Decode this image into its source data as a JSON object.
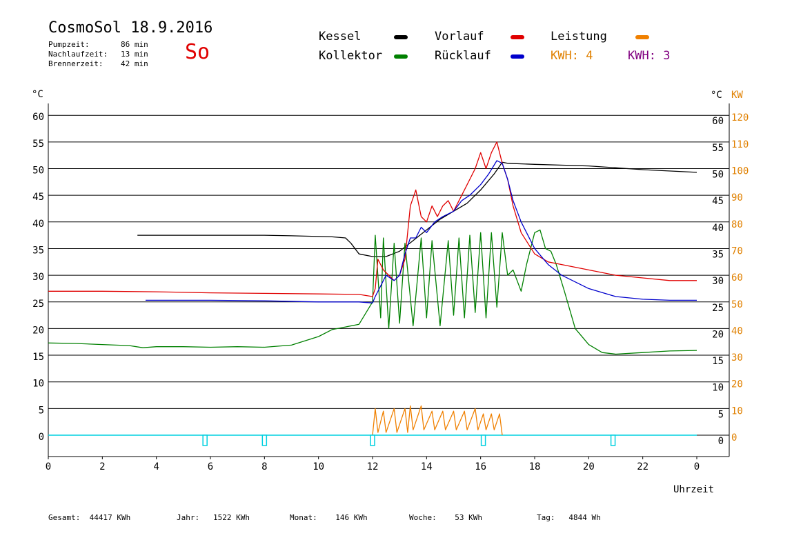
{
  "header": {
    "title": "CosmoSol 18.9.2016",
    "day_label": "So",
    "stats": [
      {
        "label": "Pumpzeit:",
        "value": "86 min"
      },
      {
        "label": "Nachlaufzeit:",
        "value": "13 min"
      },
      {
        "label": "Brennerzeit:",
        "value": "42 min"
      }
    ]
  },
  "legend": {
    "kessel": {
      "label": "Kessel",
      "color": "#000000"
    },
    "kollektor": {
      "label": "Kollektor",
      "color": "#008000"
    },
    "vorlauf": {
      "label": "Vorlauf",
      "color": "#e00000"
    },
    "ruecklauf": {
      "label": "Rücklauf",
      "color": "#0000cc"
    },
    "leistung": {
      "label": "Leistung",
      "color": "#f08000"
    },
    "kwh_a": {
      "label": "KWH:",
      "value": "4",
      "color": "#e08000"
    },
    "kwh_b": {
      "label": "KWH:",
      "value": "3",
      "color": "#800080"
    }
  },
  "footer": {
    "gesamt": {
      "label": "Gesamt:",
      "value": "44417 KWh"
    },
    "jahr": {
      "label": "Jahr:",
      "value": "1522 KWh"
    },
    "monat": {
      "label": "Monat:",
      "value": "146 KWh"
    },
    "woche": {
      "label": "Woche:",
      "value": "53 KWh"
    },
    "tag": {
      "label": "Tag:",
      "value": "4844 Wh"
    }
  },
  "chart_data": {
    "type": "line",
    "xlabel": "Uhrzeit",
    "x_ticks": [
      "0",
      "2",
      "4",
      "6",
      "8",
      "10",
      "12",
      "14",
      "16",
      "18",
      "20",
      "22",
      "0"
    ],
    "xlim": [
      0,
      24
    ],
    "ylabel_left": "°C",
    "ylabel_right": "°C",
    "ylabel_right2": "KW",
    "ylim": [
      -4,
      64
    ],
    "y_ticks": [
      0,
      5,
      10,
      15,
      20,
      25,
      30,
      35,
      40,
      45,
      50,
      55,
      60
    ],
    "y2_ticks": [
      0,
      10,
      20,
      30,
      40,
      50,
      60,
      70,
      80,
      90,
      100,
      110,
      120
    ],
    "grid": true,
    "colors": {
      "kessel": "#000000",
      "kollektor": "#008000",
      "vorlauf": "#e00000",
      "ruecklauf": "#0000cc",
      "leistung": "#f08000",
      "pump": "#00d0e0"
    },
    "series": [
      {
        "name": "Kessel",
        "points": [
          [
            3.3,
            37.5
          ],
          [
            6,
            37.5
          ],
          [
            8,
            37.5
          ],
          [
            9,
            37.4
          ],
          [
            10.5,
            37.2
          ],
          [
            11,
            37
          ],
          [
            11.2,
            36
          ],
          [
            11.5,
            34
          ],
          [
            12,
            33.5
          ],
          [
            12.5,
            33.5
          ],
          [
            13,
            34.5
          ],
          [
            13.5,
            36.5
          ],
          [
            14,
            38.5
          ],
          [
            14.5,
            40.5
          ],
          [
            15,
            42
          ],
          [
            15.5,
            43.5
          ],
          [
            16,
            46
          ],
          [
            16.5,
            49
          ],
          [
            16.8,
            51.2
          ],
          [
            17,
            51
          ],
          [
            18,
            50.8
          ],
          [
            20,
            50.5
          ],
          [
            22,
            49.8
          ],
          [
            24,
            49.3
          ]
        ]
      },
      {
        "name": "Kollektor",
        "points": [
          [
            0,
            17.3
          ],
          [
            1,
            17.2
          ],
          [
            2,
            17
          ],
          [
            3,
            16.8
          ],
          [
            3.5,
            16.4
          ],
          [
            4,
            16.6
          ],
          [
            5,
            16.6
          ],
          [
            6,
            16.5
          ],
          [
            7,
            16.6
          ],
          [
            8,
            16.5
          ],
          [
            9,
            16.9
          ],
          [
            10,
            18.5
          ],
          [
            10.5,
            19.8
          ],
          [
            11,
            20.3
          ],
          [
            11.5,
            20.8
          ],
          [
            12,
            25
          ],
          [
            12.1,
            37.5
          ],
          [
            12.3,
            22
          ],
          [
            12.4,
            37
          ],
          [
            12.6,
            20
          ],
          [
            12.8,
            36
          ],
          [
            13,
            21
          ],
          [
            13.2,
            36
          ],
          [
            13.5,
            20.5
          ],
          [
            13.8,
            37
          ],
          [
            14,
            22
          ],
          [
            14.2,
            36.5
          ],
          [
            14.5,
            20.5
          ],
          [
            14.8,
            36.5
          ],
          [
            15,
            22.5
          ],
          [
            15.2,
            37
          ],
          [
            15.4,
            22
          ],
          [
            15.6,
            37.5
          ],
          [
            15.8,
            23
          ],
          [
            16,
            38
          ],
          [
            16.2,
            22
          ],
          [
            16.4,
            38
          ],
          [
            16.6,
            24
          ],
          [
            16.8,
            38
          ],
          [
            17,
            30
          ],
          [
            17.2,
            31
          ],
          [
            17.5,
            27
          ],
          [
            17.7,
            32
          ],
          [
            18,
            38
          ],
          [
            18.2,
            38.5
          ],
          [
            18.4,
            35
          ],
          [
            18.6,
            34.5
          ],
          [
            18.8,
            32
          ],
          [
            19.1,
            27
          ],
          [
            19.5,
            20
          ],
          [
            20,
            17
          ],
          [
            20.5,
            15.5
          ],
          [
            21,
            15.2
          ],
          [
            22,
            15.5
          ],
          [
            23,
            15.8
          ],
          [
            24,
            15.9
          ]
        ]
      },
      {
        "name": "Vorlauf",
        "points": [
          [
            0,
            27
          ],
          [
            2,
            27
          ],
          [
            4,
            26.9
          ],
          [
            6,
            26.7
          ],
          [
            8,
            26.6
          ],
          [
            10,
            26.5
          ],
          [
            11.5,
            26.4
          ],
          [
            12,
            26
          ],
          [
            12.1,
            27.5
          ],
          [
            12.2,
            33
          ],
          [
            12.4,
            31
          ],
          [
            12.6,
            30
          ],
          [
            12.8,
            29
          ],
          [
            13,
            30
          ],
          [
            13.2,
            33
          ],
          [
            13.4,
            43
          ],
          [
            13.6,
            46
          ],
          [
            13.8,
            41
          ],
          [
            14,
            40
          ],
          [
            14.2,
            43
          ],
          [
            14.4,
            41
          ],
          [
            14.6,
            43
          ],
          [
            14.8,
            44
          ],
          [
            15,
            42
          ],
          [
            15.2,
            44
          ],
          [
            15.4,
            46
          ],
          [
            15.6,
            48
          ],
          [
            15.8,
            50
          ],
          [
            16,
            53
          ],
          [
            16.2,
            50
          ],
          [
            16.4,
            53
          ],
          [
            16.6,
            55
          ],
          [
            16.8,
            51
          ],
          [
            17,
            48
          ],
          [
            17.2,
            43
          ],
          [
            17.5,
            38
          ],
          [
            18,
            34
          ],
          [
            18.5,
            32.5
          ],
          [
            19,
            32
          ],
          [
            20,
            31
          ],
          [
            21,
            30
          ],
          [
            22,
            29.5
          ],
          [
            23,
            29
          ],
          [
            24,
            29
          ]
        ]
      },
      {
        "name": "Rücklauf",
        "points": [
          [
            3.6,
            25.3
          ],
          [
            6,
            25.3
          ],
          [
            8,
            25.2
          ],
          [
            10,
            25
          ],
          [
            11.5,
            25
          ],
          [
            12,
            24.8
          ],
          [
            12.1,
            26
          ],
          [
            12.3,
            28
          ],
          [
            12.5,
            30
          ],
          [
            12.8,
            29
          ],
          [
            13,
            30
          ],
          [
            13.2,
            34
          ],
          [
            13.4,
            37
          ],
          [
            13.6,
            37
          ],
          [
            13.8,
            39
          ],
          [
            14,
            38
          ],
          [
            14.3,
            40
          ],
          [
            14.6,
            41
          ],
          [
            15,
            42
          ],
          [
            15.3,
            44
          ],
          [
            15.6,
            45
          ],
          [
            16,
            47
          ],
          [
            16.3,
            49
          ],
          [
            16.6,
            51.5
          ],
          [
            16.8,
            51
          ],
          [
            17,
            48
          ],
          [
            17.2,
            44
          ],
          [
            17.5,
            40
          ],
          [
            18,
            35
          ],
          [
            18.5,
            32
          ],
          [
            19,
            30
          ],
          [
            20,
            27.5
          ],
          [
            21,
            26
          ],
          [
            22,
            25.5
          ],
          [
            23,
            25.3
          ],
          [
            24,
            25.3
          ]
        ]
      },
      {
        "name": "Leistung",
        "points": [
          [
            12,
            0
          ],
          [
            12.1,
            5
          ],
          [
            12.2,
            0.5
          ],
          [
            12.4,
            4.5
          ],
          [
            12.5,
            0.5
          ],
          [
            12.8,
            5
          ],
          [
            12.9,
            0.5
          ],
          [
            13.2,
            5
          ],
          [
            13.3,
            0.5
          ],
          [
            13.4,
            5.5
          ],
          [
            13.5,
            1
          ],
          [
            13.8,
            5.5
          ],
          [
            13.9,
            1
          ],
          [
            14.2,
            4.5
          ],
          [
            14.3,
            1
          ],
          [
            14.6,
            4.5
          ],
          [
            14.7,
            1
          ],
          [
            15,
            4.5
          ],
          [
            15.1,
            1
          ],
          [
            15.4,
            4.5
          ],
          [
            15.5,
            1
          ],
          [
            15.8,
            5
          ],
          [
            15.9,
            1
          ],
          [
            16.1,
            4
          ],
          [
            16.2,
            1
          ],
          [
            16.4,
            4
          ],
          [
            16.5,
            1
          ],
          [
            16.7,
            4
          ],
          [
            16.8,
            0
          ]
        ]
      }
    ],
    "pump_markers": [
      5.8,
      8.0,
      12.0,
      16.1,
      20.9
    ]
  }
}
